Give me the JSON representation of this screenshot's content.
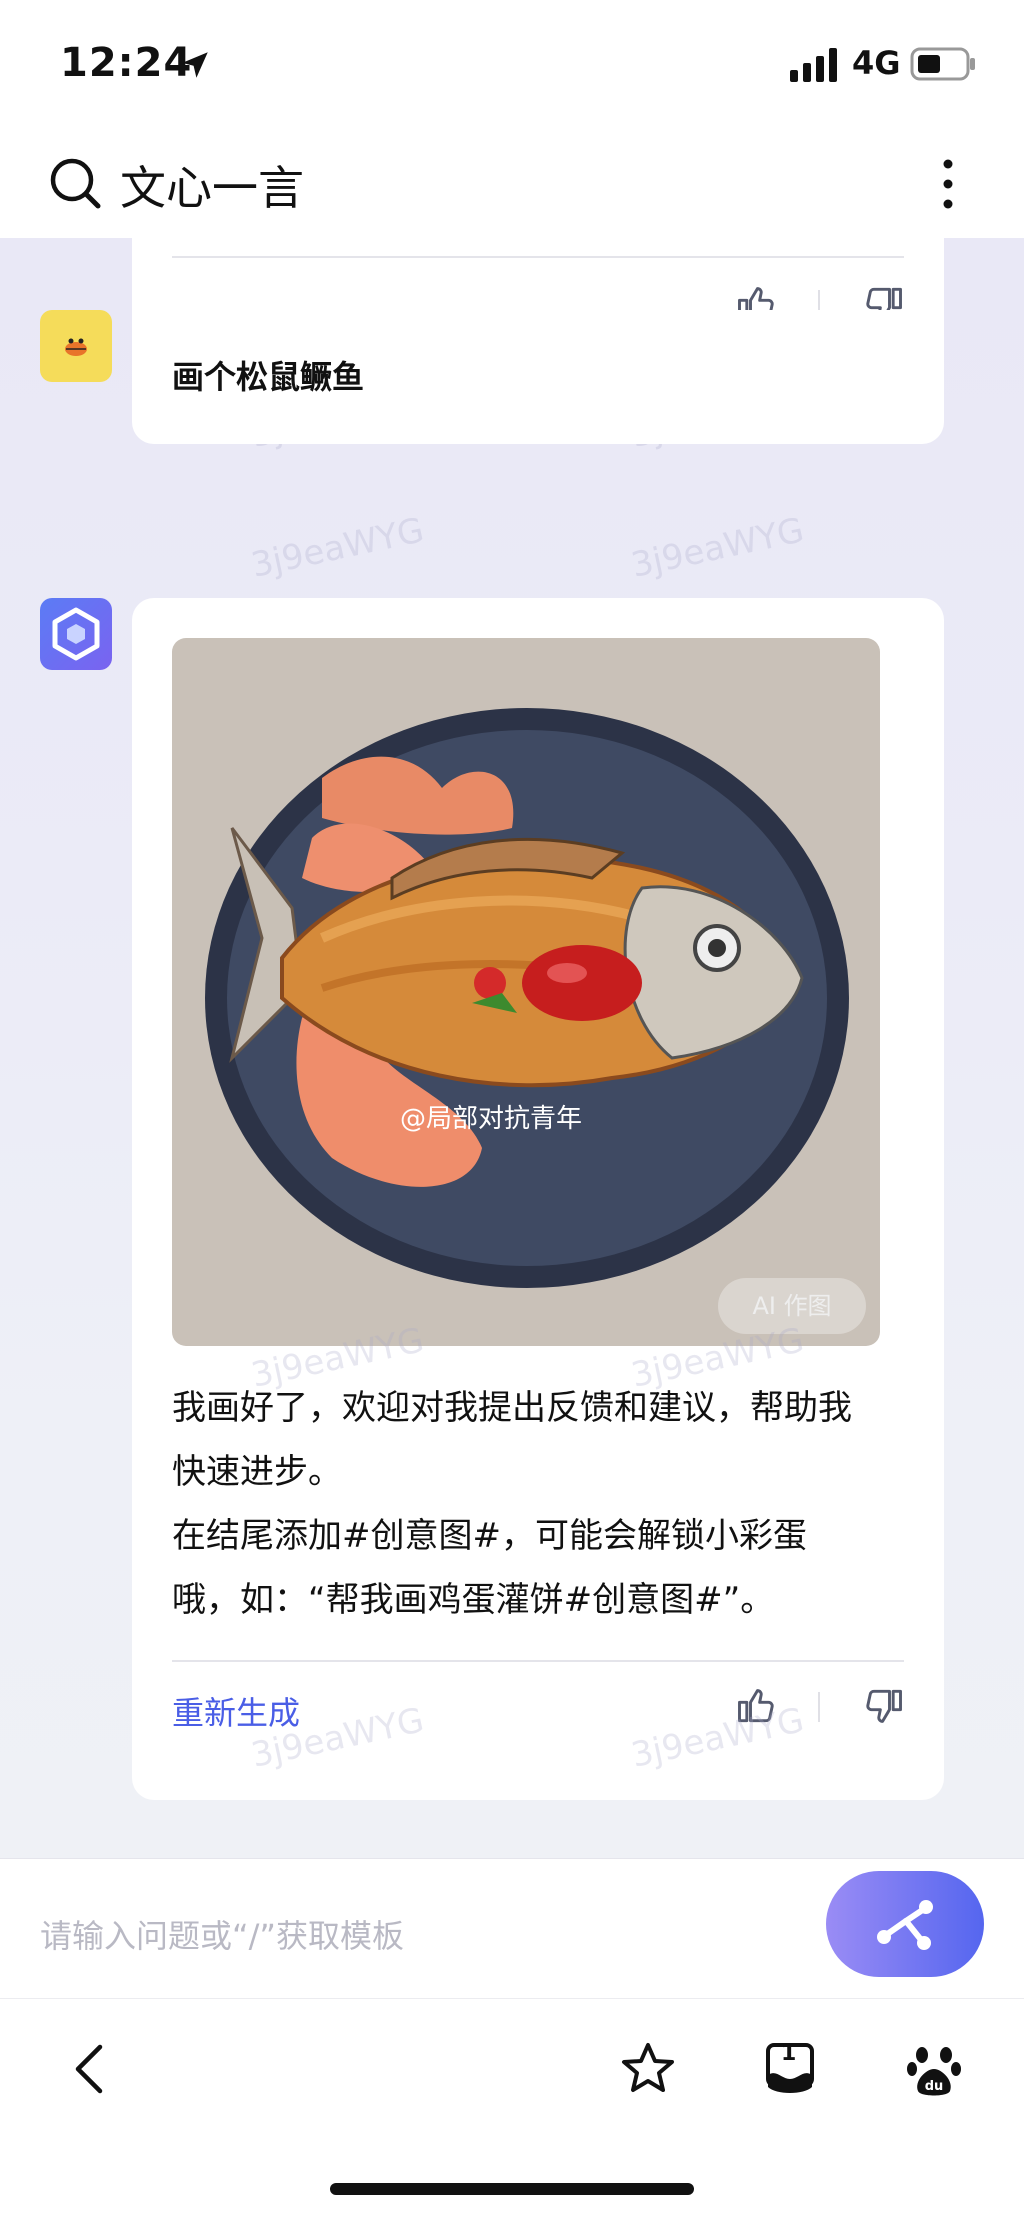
{
  "status_bar": {
    "time": "12:24",
    "network": "4G"
  },
  "header": {
    "title": "文心一言"
  },
  "watermark_text": "3j9eaWYG",
  "user_message": "画个松鼠鳜鱼",
  "ai_response": {
    "image_badge": "AI 作图",
    "image_watermark": "@局部对抗青年",
    "line1": "我画好了，欢迎对我提出反馈和建议，帮助我",
    "line2": "快速进步。",
    "line3": "在结尾添加#创意图#，可能会解锁小彩蛋",
    "line4": "哦，如：“帮我画鸡蛋灌饼#创意图#”。",
    "regenerate_label": "重新生成"
  },
  "input": {
    "placeholder": "请输入问题或“/”获取模板"
  },
  "tab_count": "1",
  "colors": {
    "accent": "#4a5ee6",
    "send_button": "#6f6ff0",
    "user_avatar": "#f5dc5a"
  }
}
